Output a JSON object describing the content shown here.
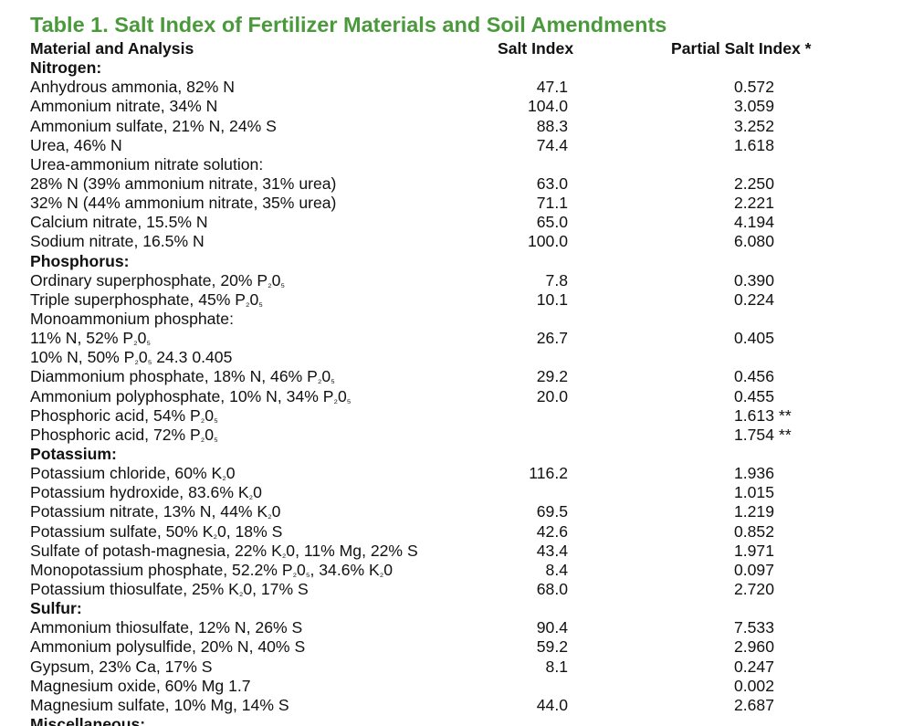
{
  "title": "Table 1. Salt Index of Fertilizer Materials and Soil Amendments",
  "headers": {
    "material": "Material and Analysis",
    "salt_index": "Salt Index",
    "partial_salt_index": "Partial Salt Index *"
  },
  "rows": [
    {
      "type": "section",
      "material": "Nitrogen:"
    },
    {
      "type": "row",
      "material": "Anhydrous ammonia, 82% N",
      "si": "47.1",
      "psi": "0.572",
      "note": ""
    },
    {
      "type": "row",
      "material": "Ammonium nitrate, 34% N",
      "si": "104.0",
      "psi": "3.059",
      "note": ""
    },
    {
      "type": "row",
      "material": "Ammonium sulfate, 21% N, 24% S",
      "si": "88.3",
      "psi": "3.252",
      "note": ""
    },
    {
      "type": "row",
      "material": "Urea, 46% N",
      "si": "74.4",
      "psi": "1.618",
      "note": ""
    },
    {
      "type": "row",
      "material": "Urea-ammonium nitrate solution:",
      "si": "",
      "psi": "",
      "note": ""
    },
    {
      "type": "row",
      "material": "28% N (39% ammonium nitrate, 31% urea)",
      "si": "63.0",
      "psi": "2.250",
      "note": ""
    },
    {
      "type": "row",
      "material": "32% N (44% ammonium nitrate, 35% urea)",
      "si": "71.1",
      "psi": "2.221",
      "note": ""
    },
    {
      "type": "row",
      "material": "Calcium nitrate, 15.5% N",
      "si": "65.0",
      "psi": "4.194",
      "note": ""
    },
    {
      "type": "row",
      "material": "Sodium nitrate, 16.5% N",
      "si": "100.0",
      "psi": "6.080",
      "note": ""
    },
    {
      "type": "section",
      "material": "Phosphorus:"
    },
    {
      "type": "row",
      "material": "Ordinary superphosphate, 20% P₂0₅",
      "si": "7.8",
      "psi": "0.390",
      "note": ""
    },
    {
      "type": "row",
      "material": "Triple superphosphate, 45% P₂0₅",
      "si": "10.1",
      "psi": "0.224",
      "note": ""
    },
    {
      "type": "row",
      "material": "Monoammonium phosphate:",
      "si": "",
      "psi": "",
      "note": ""
    },
    {
      "type": "row",
      "material": "11% N, 52% P₂0₅",
      "si": "26.7",
      "psi": "0.405",
      "note": ""
    },
    {
      "type": "row",
      "material": "10% N, 50% P₂0₅ 24.3 0.405",
      "si": "",
      "psi": "",
      "note": ""
    },
    {
      "type": "row",
      "material": "Diammonium phosphate, 18% N, 46% P₂0₅",
      "si": "29.2",
      "psi": "0.456",
      "note": ""
    },
    {
      "type": "row",
      "material": "Ammonium polyphosphate, 10% N, 34% P₂0₅",
      "si": "20.0",
      "psi": "0.455",
      "note": ""
    },
    {
      "type": "row",
      "material": "Phosphoric acid, 54% P₂0₅",
      "si": "",
      "psi": "1.613",
      "note": "**"
    },
    {
      "type": "row",
      "material": "Phosphoric acid, 72% P₂0₅",
      "si": "",
      "psi": "1.754",
      "note": "**"
    },
    {
      "type": "section",
      "material": "Potassium:"
    },
    {
      "type": "row",
      "material": "Potassium chloride, 60% K₂0",
      "si": "116.2",
      "psi": "1.936",
      "note": ""
    },
    {
      "type": "row",
      "material": "Potassium hydroxide, 83.6% K₂0",
      "si": "",
      "psi": "1.015",
      "note": ""
    },
    {
      "type": "row",
      "material": "Potassium nitrate, 13% N, 44% K₂0",
      "si": "69.5",
      "psi": "1.219",
      "note": ""
    },
    {
      "type": "row",
      "material": "Potassium sulfate, 50% K₂0, 18% S",
      "si": "42.6",
      "psi": "0.852",
      "note": ""
    },
    {
      "type": "row",
      "material": "Sulfate of potash-magnesia, 22% K₂0, 11% Mg, 22% S",
      "si": "43.4",
      "psi": "1.971",
      "note": ""
    },
    {
      "type": "row",
      "material": "Monopotassium phosphate, 52.2% P₂0₅, 34.6% K₂0",
      "si": "8.4",
      "psi": "0.097",
      "note": ""
    },
    {
      "type": "row",
      "material": "Potassium thiosulfate, 25% K₂0, 17% S",
      "si": "68.0",
      "psi": "2.720",
      "note": ""
    },
    {
      "type": "section",
      "material": "Sulfur:"
    },
    {
      "type": "row",
      "material": "Ammonium thiosulfate, 12% N, 26% S",
      "si": "90.4",
      "psi": "7.533",
      "note": ""
    },
    {
      "type": "row",
      "material": "Ammonium polysulfide, 20% N, 40% S",
      "si": "59.2",
      "psi": "2.960",
      "note": ""
    },
    {
      "type": "row",
      "material": "Gypsum, 23% Ca, 17% S",
      "si": "8.1",
      "psi": "0.247",
      "note": ""
    },
    {
      "type": "row",
      "material": "Magnesium oxide, 60% Mg 1.7",
      "si": "",
      "psi": "0.002",
      "note": ""
    },
    {
      "type": "row",
      "material": "Magnesium sulfate, 10% Mg, 14% S",
      "si": "44.0",
      "psi": "2.687",
      "note": ""
    },
    {
      "type": "cutoff",
      "material": "Miscellaneous:"
    }
  ]
}
